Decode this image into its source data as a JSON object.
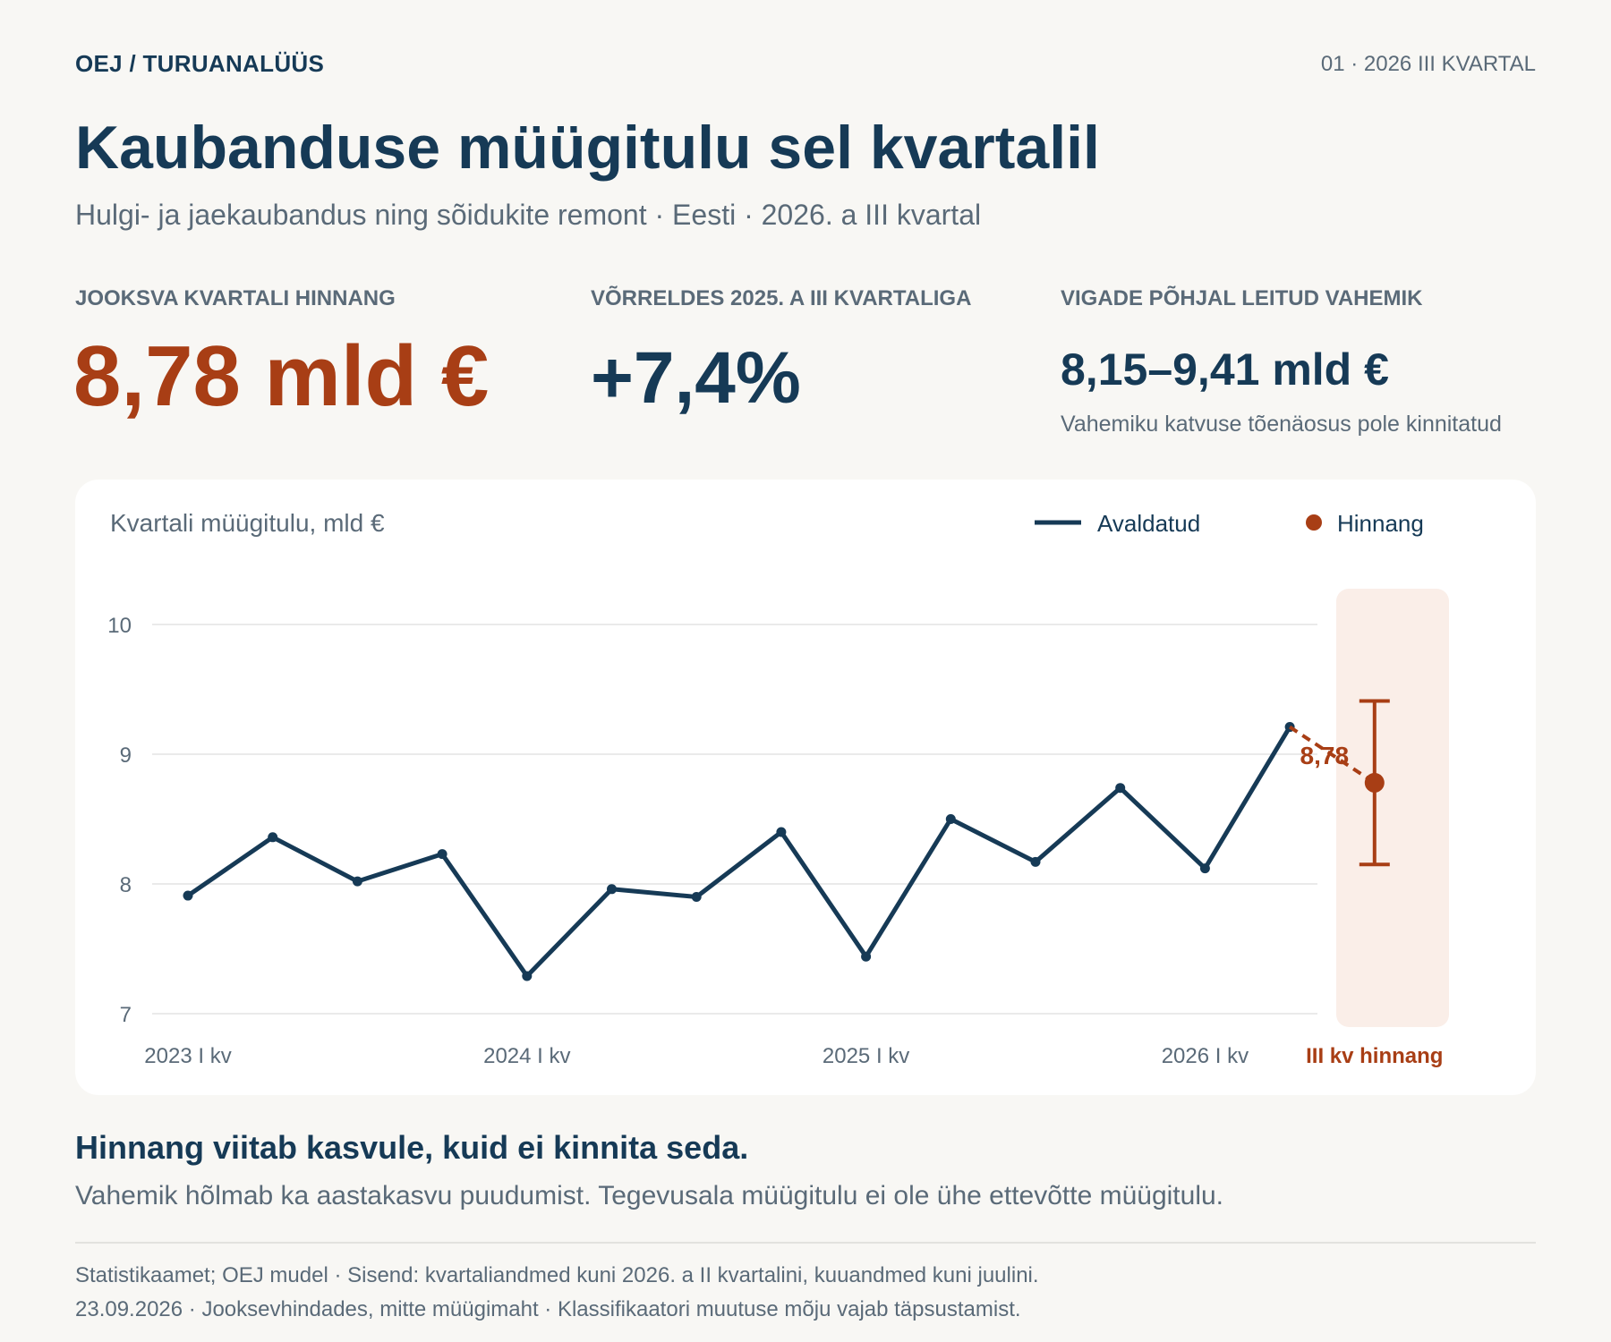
{
  "header": {
    "brand": "OEJ / TURUANALÜÜS",
    "issue": "01 · 2026 III KVARTAL",
    "title": "Kaubanduse müügitulu sel kvartalil",
    "subtitle": "Hulgi- ja jaekaubandus ning sõidukite remont · Eesti · 2026. a III kvartal"
  },
  "kpis": [
    {
      "label": "JOOKSVA KVARTALI HINNANG",
      "value": "8,78 mld €"
    },
    {
      "label": "VÕRRELDES 2025. A III KVARTALIGA",
      "value": "+7,4%"
    },
    {
      "label": "VIGADE PÕHJAL LEITUD VAHEMIK",
      "value": "8,15–9,41 mld €",
      "note": "Vahemiku katvuse tõenäosus pole kinnitatud"
    }
  ],
  "colors": {
    "published": "#163a56",
    "estimate": "#a83e15",
    "estimate_band": "#faeee8",
    "grid": "#e3e3e3",
    "muted_text": "#5a6a78"
  },
  "chart_data": {
    "type": "line",
    "title": "Kvartali müügitulu, mld €",
    "legend": {
      "placement": "top-right",
      "items": [
        "Avaldatud",
        "Hinnang"
      ]
    },
    "ylim": [
      7,
      10
    ],
    "yticks": [
      "7",
      "8",
      "9",
      "10"
    ],
    "grid": true,
    "x_tick_labels": [
      "2023 I kv",
      "2024 I kv",
      "2025 I kv",
      "2026 I kv",
      "III kv hinnang"
    ],
    "x_tick_quarter_index": [
      0,
      4,
      8,
      12,
      14
    ],
    "series": [
      {
        "name": "Avaldatud",
        "quarter_index": [
          0,
          1,
          2,
          3,
          4,
          5,
          6,
          7,
          8,
          9,
          10,
          11,
          12,
          13
        ],
        "values": [
          7.91,
          8.36,
          8.02,
          8.23,
          7.29,
          7.96,
          7.9,
          8.4,
          7.44,
          8.5,
          8.17,
          8.74,
          8.12,
          9.21
        ]
      },
      {
        "name": "Hinnang",
        "quarter_index": [
          14
        ],
        "values": [
          8.78
        ],
        "label": "8,78",
        "interval": [
          8.15,
          9.41
        ]
      }
    ]
  },
  "takeaway": {
    "heading": "Hinnang viitab kasvule, kuid ei kinnita seda.",
    "body": "Vahemik hõlmab ka aastakasvu puudumist. Tegevusala müügitulu ei ole ühe ettevõtte müügitulu."
  },
  "footer": {
    "line1": "Statistikaamet; OEJ mudel · Sisend: kvartaliandmed kuni 2026. a II kvartalini, kuuandmed kuni juulini.",
    "line2": "23.09.2026 · Jooksevhindades, mitte müügimaht · Klassifikaatori muutuse mõju vajab täpsustamist."
  }
}
